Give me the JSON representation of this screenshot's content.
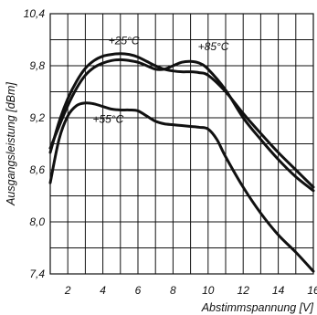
{
  "chart_data": {
    "type": "line",
    "xlabel": "Abstimmspannung [V]",
    "ylabel": "Ausgangsleistung [dBm]",
    "xlim": [
      1,
      16
    ],
    "ylim": [
      7.4,
      10.4
    ],
    "x_ticks": [
      2,
      4,
      6,
      8,
      10,
      12,
      14,
      16
    ],
    "x_tick_labels": [
      "2",
      "4",
      "6",
      "8",
      "10",
      "12",
      "14",
      "16"
    ],
    "y_ticks": [
      7.4,
      8.0,
      8.6,
      9.2,
      9.8,
      10.4
    ],
    "y_tick_labels": [
      "7,4",
      "8,0",
      "8,6",
      "9,2",
      "9,8",
      "10,4"
    ],
    "grid_x": [
      1,
      2,
      3,
      4,
      5,
      6,
      7,
      8,
      9,
      10,
      11,
      12,
      13,
      14,
      15,
      16
    ],
    "grid_y": [
      7.4,
      7.7,
      8.0,
      8.3,
      8.6,
      8.9,
      9.2,
      9.5,
      9.8,
      10.1,
      10.4
    ],
    "grid": true,
    "series": [
      {
        "name": "+25°C",
        "x": [
          1,
          1.5,
          2,
          2.5,
          3,
          3.5,
          4,
          4.5,
          5,
          5.5,
          6,
          6.5,
          7,
          7.5,
          8,
          8.5,
          9,
          9.5,
          10,
          11,
          12,
          13,
          14,
          15,
          16
        ],
        "y": [
          8.8,
          9.15,
          9.42,
          9.62,
          9.77,
          9.86,
          9.91,
          9.93,
          9.94,
          9.93,
          9.9,
          9.85,
          9.8,
          9.76,
          9.74,
          9.73,
          9.73,
          9.72,
          9.69,
          9.5,
          9.25,
          9.02,
          8.8,
          8.6,
          8.4
        ]
      },
      {
        "name": "+85°C",
        "x": [
          1,
          1.5,
          2,
          2.5,
          3,
          3.5,
          4,
          4.5,
          5,
          5.5,
          6,
          6.5,
          7,
          7.5,
          8,
          8.5,
          9,
          9.5,
          10,
          11,
          12,
          13,
          14,
          15,
          16
        ],
        "y": [
          8.85,
          9.1,
          9.34,
          9.54,
          9.69,
          9.78,
          9.83,
          9.86,
          9.87,
          9.86,
          9.84,
          9.8,
          9.76,
          9.76,
          9.8,
          9.84,
          9.85,
          9.83,
          9.76,
          9.52,
          9.2,
          8.95,
          8.72,
          8.52,
          8.36
        ]
      },
      {
        "name": "+55°C",
        "x": [
          1,
          1.5,
          2,
          2.5,
          3,
          3.5,
          4,
          4.5,
          5,
          5.5,
          6,
          6.5,
          7,
          7.5,
          8,
          8.5,
          9,
          9.5,
          10,
          10.5,
          11,
          12,
          13,
          14,
          15,
          16
        ],
        "y": [
          8.45,
          8.95,
          9.22,
          9.34,
          9.37,
          9.36,
          9.33,
          9.3,
          9.29,
          9.29,
          9.28,
          9.22,
          9.16,
          9.13,
          9.12,
          9.11,
          9.1,
          9.09,
          9.07,
          8.95,
          8.75,
          8.4,
          8.1,
          7.85,
          7.65,
          7.43
        ]
      }
    ],
    "annotations": [
      {
        "text": "+25°C",
        "x": 5.2,
        "y": 10.05
      },
      {
        "text": "+85°C",
        "x": 10.3,
        "y": 9.98
      },
      {
        "text": "+55°C",
        "x": 4.3,
        "y": 9.14
      }
    ]
  }
}
